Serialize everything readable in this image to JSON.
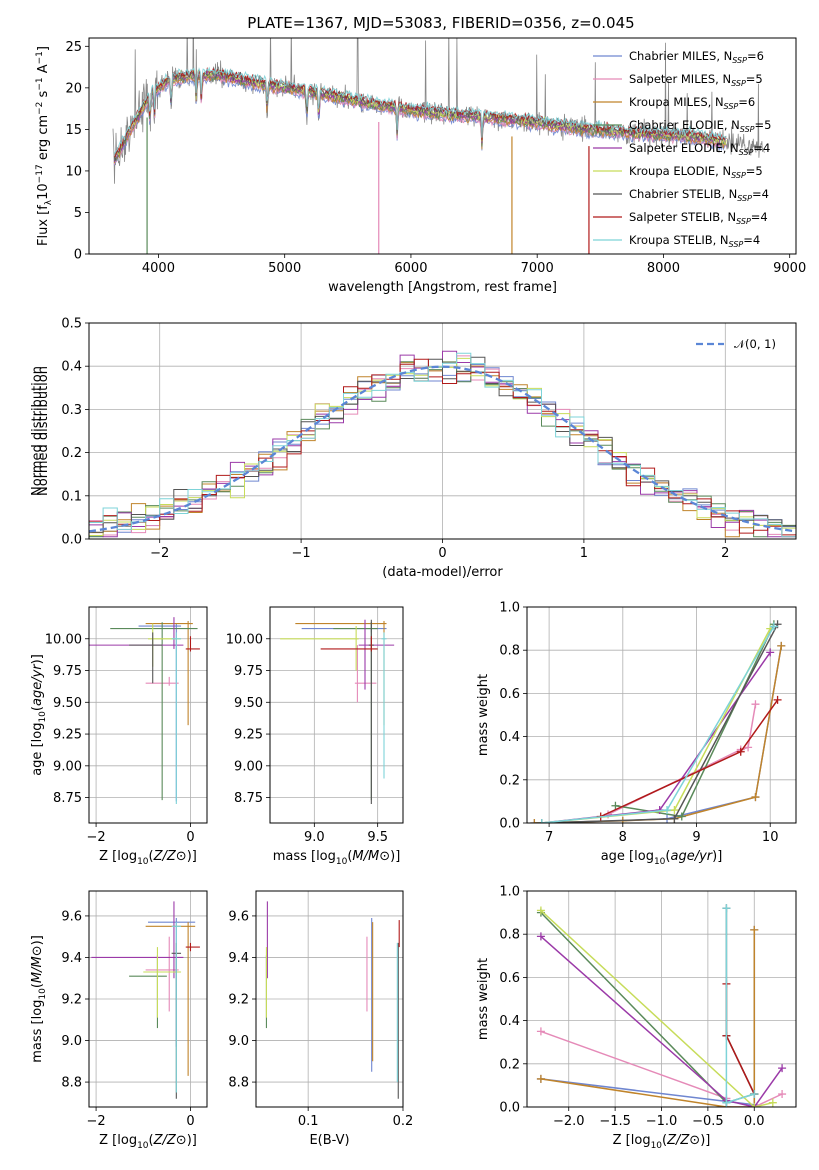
{
  "title": "PLATE=1367, MJD=53083, FIBERID=0356, z=0.045",
  "colors": {
    "series": [
      "#6f86d0",
      "#e58ab8",
      "#c0842b",
      "#5a8a5a",
      "#9b3aa8",
      "#c7dc5a",
      "#555555",
      "#b01a1a",
      "#7dd3d8"
    ],
    "grid": "#b0b0b0",
    "normal_curve": "#5b86d6"
  },
  "series_names": [
    [
      "Chabrier MILES, N",
      "SSP",
      "=6"
    ],
    [
      "Salpeter MILES, N",
      "SSP",
      "=5"
    ],
    [
      "Kroupa MILES, N",
      "SSP",
      "=6"
    ],
    [
      "Chabrier ELODIE, N",
      "SSP",
      "=5"
    ],
    [
      "Salpeter ELODIE, N",
      "SSP",
      "=4"
    ],
    [
      "Kroupa ELODIE, N",
      "SSP",
      "=5"
    ],
    [
      "Chabrier STELIB, N",
      "SSP",
      "=4"
    ],
    [
      "Salpeter STELIB, N",
      "SSP",
      "=4"
    ],
    [
      "Kroupa STELIB, N",
      "SSP",
      "=4"
    ]
  ],
  "chart_data": [
    {
      "id": "spectrum",
      "type": "line",
      "xlabel": "wavelength [Angstrom, rest frame]",
      "ylabel": [
        "Flux [f",
        "λ",
        "10",
        "−17",
        " erg cm",
        "−2",
        " s",
        "−1",
        " A",
        "−1",
        "]"
      ],
      "xlim": [
        3450,
        9050
      ],
      "ylim": [
        0,
        26
      ],
      "xticks": [
        4000,
        5000,
        6000,
        7000,
        8000,
        9000
      ],
      "yticks": [
        0,
        5,
        10,
        15,
        20,
        25
      ],
      "continuum_knots": [
        [
          3640,
          11
        ],
        [
          3800,
          15.5
        ],
        [
          3950,
          19.5
        ],
        [
          4100,
          21
        ],
        [
          4300,
          21.5
        ],
        [
          4500,
          21.5
        ],
        [
          4800,
          20.5
        ],
        [
          5100,
          19.8
        ],
        [
          5400,
          19
        ],
        [
          5700,
          18
        ],
        [
          6000,
          17.3
        ],
        [
          6300,
          16.8
        ],
        [
          6600,
          16.5
        ],
        [
          7000,
          15.8
        ],
        [
          7400,
          15
        ],
        [
          7800,
          14.5
        ],
        [
          8200,
          14.2
        ],
        [
          8500,
          13.5
        ],
        [
          8800,
          12.8
        ]
      ],
      "absorption_lines": [
        3933,
        3968,
        4101,
        4300,
        4340,
        4861,
        5175,
        5270,
        5890,
        6563
      ],
      "model_range": [
        3650,
        8500
      ],
      "dropouts": [
        [
          3910,
          3
        ],
        [
          5745,
          1
        ],
        [
          6800,
          2
        ],
        [
          7410,
          7
        ]
      ]
    },
    {
      "id": "residuals",
      "type": "histogram",
      "xlabel": "(data-model)/error",
      "ylabel": "Normed distribution",
      "xlim": [
        -2.5,
        2.5
      ],
      "ylim": [
        0,
        0.5
      ],
      "xticks": [
        -2,
        -1,
        0,
        1,
        2
      ],
      "xtick_labels": [
        "−2",
        "−1",
        "0",
        "1",
        "2"
      ],
      "yticks": [
        0,
        0.1,
        0.2,
        0.3,
        0.4,
        0.5
      ],
      "bin_width": 0.1,
      "legend_label": "𝒩(0, 1)"
    },
    {
      "id": "age_vs_Z",
      "type": "errorbar",
      "xlabel": "Z [log10(Z/Z⊙)]",
      "ylabel": "age  [log10(age/yr)]",
      "xlim": [
        -2.15,
        0.35
      ],
      "ylim": [
        8.55,
        10.25
      ],
      "xticks": [
        -2,
        0
      ],
      "yticks": [
        8.75,
        9.0,
        9.25,
        9.5,
        9.75,
        10.0
      ],
      "points": [
        {
          "x": -0.3,
          "xerr": [
            0.8,
            0.1
          ],
          "y": 10.1,
          "yerr": [
            1.38,
            0.02
          ]
        },
        {
          "x": -0.45,
          "xerr": [
            0.5,
            0.2
          ],
          "y": 9.65,
          "yerr": [
            0.02,
            0.05
          ]
        },
        {
          "x": -0.05,
          "xerr": [
            0.9,
            0.1
          ],
          "y": 10.12,
          "yerr": [
            0.8,
            0.02
          ]
        },
        {
          "x": -0.6,
          "xerr": [
            1.1,
            0.75
          ],
          "y": 10.08,
          "yerr": [
            1.35,
            0.05
          ]
        },
        {
          "x": -0.35,
          "xerr": [
            1.8,
            0.2
          ],
          "y": 9.95,
          "yerr": [
            0.03,
            0.22
          ]
        },
        {
          "x": -0.8,
          "xerr": [
            0.1,
            0.6
          ],
          "y": 10.0,
          "yerr": [
            0.22,
            0.12
          ]
        },
        {
          "x": -0.8,
          "xerr": [
            0.5,
            0.2
          ],
          "y": 9.95,
          "yerr": [
            0.3,
            0.1
          ]
        },
        {
          "x": 0.0,
          "xerr": [
            0.1,
            0.2
          ],
          "y": 9.92,
          "yerr": [
            0.02,
            0.1
          ]
        },
        {
          "x": -0.3,
          "xerr": [
            0.1,
            0.1
          ],
          "y": 10.0,
          "yerr": [
            1.3,
            0.05
          ]
        }
      ]
    },
    {
      "id": "age_vs_mass",
      "type": "errorbar",
      "xlabel": "mass [log10(M/M⊙)]",
      "ylabel": "",
      "xlim": [
        8.65,
        9.7
      ],
      "ylim": [
        8.55,
        10.25
      ],
      "xticks": [
        9.0,
        9.5
      ],
      "yticks": [
        8.75,
        9.0,
        9.25,
        9.5,
        9.75,
        10.0
      ],
      "points": [
        {
          "x": 9.45,
          "xerr": [
            0.55,
            0.12
          ],
          "y": 10.08,
          "yerr": [
            0.03,
            0.05
          ]
        },
        {
          "x": 9.34,
          "xerr": [
            0.02,
            0.15
          ],
          "y": 9.65,
          "yerr": [
            0.15,
            0.3
          ]
        },
        {
          "x": 9.55,
          "xerr": [
            0.7,
            0.02
          ],
          "y": 10.12,
          "yerr": [
            0.8,
            0.02
          ]
        },
        {
          "x": 9.45,
          "xerr": [
            0.3,
            0.05
          ],
          "y": 10.08,
          "yerr": [
            1.35,
            0.05
          ]
        },
        {
          "x": 9.4,
          "xerr": [
            0.05,
            0.23
          ],
          "y": 9.95,
          "yerr": [
            0.35,
            0.2
          ]
        },
        {
          "x": 9.33,
          "xerr": [
            0.6,
            0.02
          ],
          "y": 10.0,
          "yerr": [
            0.25,
            0.1
          ]
        },
        {
          "x": 9.45,
          "xerr": [
            0.02,
            0.02
          ],
          "y": 9.95,
          "yerr": [
            1.25,
            0.2
          ]
        },
        {
          "x": 9.45,
          "xerr": [
            0.4,
            0.05
          ],
          "y": 9.92,
          "yerr": [
            0.02,
            0.1
          ]
        },
        {
          "x": 9.55,
          "xerr": [
            0.02,
            0.02
          ],
          "y": 10.0,
          "yerr": [
            1.1,
            0.05
          ]
        }
      ]
    },
    {
      "id": "weight_vs_age",
      "type": "line",
      "xlabel": "age  [log10(age/yr)]",
      "ylabel": "mass weight",
      "xlim": [
        6.7,
        10.35
      ],
      "ylim": [
        0,
        1.0
      ],
      "xticks": [
        7,
        8,
        9,
        10
      ],
      "yticks": [
        0.0,
        0.2,
        0.4,
        0.6,
        0.8,
        1.0
      ],
      "series": [
        {
          "x": [
            6.8,
            8.0,
            8.6,
            9.8,
            10.15
          ],
          "y": [
            0.0,
            0.01,
            0.02,
            0.12,
            0.82
          ]
        },
        {
          "x": [
            7.8,
            9.6,
            9.7,
            9.8
          ],
          "y": [
            0.04,
            0.34,
            0.35,
            0.55
          ]
        },
        {
          "x": [
            6.8,
            8.0,
            8.7,
            9.8,
            10.15
          ],
          "y": [
            0.0,
            0.01,
            0.02,
            0.12,
            0.82
          ]
        },
        {
          "x": [
            7.9,
            8.8,
            10.05
          ],
          "y": [
            0.08,
            0.03,
            0.92
          ]
        },
        {
          "x": [
            6.9,
            8.5,
            10.0
          ],
          "y": [
            0.0,
            0.06,
            0.79
          ]
        },
        {
          "x": [
            6.9,
            8.7,
            10.0
          ],
          "y": [
            0.0,
            0.06,
            0.9
          ]
        },
        {
          "x": [
            6.9,
            8.7,
            10.1
          ],
          "y": [
            0.0,
            0.02,
            0.92
          ]
        },
        {
          "x": [
            7.7,
            9.6,
            10.1
          ],
          "y": [
            0.03,
            0.33,
            0.57
          ]
        },
        {
          "x": [
            6.9,
            8.6,
            10.05
          ],
          "y": [
            0.0,
            0.06,
            0.91
          ]
        }
      ]
    },
    {
      "id": "mass_vs_Z",
      "type": "errorbar",
      "xlabel": "Z [log10(Z/Z⊙)]",
      "ylabel": "mass [log10(M/M⊙)]",
      "xlim": [
        -2.15,
        0.35
      ],
      "ylim": [
        8.68,
        9.72
      ],
      "xticks": [
        -2,
        0
      ],
      "yticks": [
        8.8,
        9.0,
        9.2,
        9.4,
        9.6
      ],
      "points": [
        {
          "x": -0.3,
          "xerr": [
            0.6,
            0.4
          ],
          "y": 9.57,
          "yerr": [
            0.6,
            0.02
          ]
        },
        {
          "x": -0.45,
          "xerr": [
            0.5,
            0.2
          ],
          "y": 9.34,
          "yerr": [
            0.2,
            0.16
          ]
        },
        {
          "x": -0.05,
          "xerr": [
            0.9,
            0.15
          ],
          "y": 9.55,
          "yerr": [
            0.72,
            0.02
          ]
        },
        {
          "x": -0.7,
          "xerr": [
            0.6,
            0.2
          ],
          "y": 9.31,
          "yerr": [
            0.25,
            0.1
          ]
        },
        {
          "x": -0.35,
          "xerr": [
            1.75,
            0.2
          ],
          "y": 9.4,
          "yerr": [
            0.1,
            0.27
          ]
        },
        {
          "x": -0.7,
          "xerr": [
            0.3,
            0.5
          ],
          "y": 9.33,
          "yerr": [
            0.22,
            0.12
          ]
        },
        {
          "x": -0.3,
          "xerr": [
            0.1,
            0.1
          ],
          "y": 9.42,
          "yerr": [
            0.7,
            0.05
          ]
        },
        {
          "x": 0.0,
          "xerr": [
            0.1,
            0.2
          ],
          "y": 9.45,
          "yerr": [
            0.02,
            0.02
          ]
        },
        {
          "x": -0.3,
          "xerr": [
            0.1,
            0.1
          ],
          "y": 9.55,
          "yerr": [
            0.8,
            0.02
          ]
        }
      ]
    },
    {
      "id": "mass_vs_EBV",
      "type": "errorbar",
      "xlabel": "E(B-V)",
      "ylabel": "",
      "xlim": [
        0.045,
        0.2
      ],
      "ylim": [
        8.68,
        9.72
      ],
      "xticks": [
        0.1,
        0.2
      ],
      "yticks": [
        8.8,
        9.0,
        9.2,
        9.4,
        9.6
      ],
      "points": [
        {
          "x": 0.167,
          "xerr": [
            0,
            0
          ],
          "y": 9.57,
          "yerr": [
            0.72,
            0.02
          ]
        },
        {
          "x": 0.162,
          "xerr": [
            0,
            0
          ],
          "y": 9.34,
          "yerr": [
            0.2,
            0.16
          ]
        },
        {
          "x": 0.168,
          "xerr": [
            0,
            0
          ],
          "y": 9.55,
          "yerr": [
            0.65,
            0.02
          ]
        },
        {
          "x": 0.056,
          "xerr": [
            0,
            0
          ],
          "y": 9.31,
          "yerr": [
            0.25,
            0.1
          ]
        },
        {
          "x": 0.057,
          "xerr": [
            0,
            0
          ],
          "y": 9.4,
          "yerr": [
            0.1,
            0.27
          ]
        },
        {
          "x": 0.056,
          "xerr": [
            0,
            0
          ],
          "y": 9.33,
          "yerr": [
            0.22,
            0.12
          ]
        },
        {
          "x": 0.195,
          "xerr": [
            0,
            0
          ],
          "y": 9.42,
          "yerr": [
            0.7,
            0.05
          ]
        },
        {
          "x": 0.196,
          "xerr": [
            0,
            0
          ],
          "y": 9.5,
          "yerr": [
            0.05,
            0.08
          ]
        },
        {
          "x": 0.194,
          "xerr": [
            0,
            0
          ],
          "y": 9.45,
          "yerr": [
            0.65,
            0.02
          ]
        }
      ]
    },
    {
      "id": "weight_vs_Z",
      "type": "line",
      "xlabel": "Z [log10(Z/Z⊙)]",
      "ylabel": "mass weight",
      "xlim": [
        -2.45,
        0.45
      ],
      "ylim": [
        0,
        1.0
      ],
      "xticks": [
        -2.0,
        -1.5,
        -1.0,
        -0.5,
        0.0
      ],
      "xtick_labels": [
        "−2.0",
        "−1.5",
        "−1.0",
        "−0.5",
        "0.0"
      ],
      "yticks": [
        0.0,
        0.2,
        0.4,
        0.6,
        0.8,
        1.0
      ],
      "series": [
        {
          "x": [
            -2.3,
            0.0,
            0.0
          ],
          "y": [
            0.13,
            0.01,
            0.82
          ]
        },
        {
          "x": [
            -2.3,
            -0.3,
            -0.3,
            0.0,
            0.3
          ],
          "y": [
            0.35,
            0.04,
            0.0,
            0.0,
            0.06
          ]
        },
        {
          "x": [
            -2.3,
            -0.3,
            0.0,
            0.0
          ],
          "y": [
            0.13,
            0.0,
            0.0,
            0.82
          ]
        },
        {
          "x": [
            -2.3,
            -0.3,
            0.0
          ],
          "y": [
            0.9,
            0.02,
            0.06
          ]
        },
        {
          "x": [
            -2.3,
            -0.3,
            0.0,
            0.3
          ],
          "y": [
            0.79,
            0.03,
            0.0,
            0.18
          ]
        },
        {
          "x": [
            -2.3,
            0.0,
            0.2
          ],
          "y": [
            0.91,
            0.0,
            0.02
          ]
        },
        {
          "x": [
            -0.3,
            -0.3,
            0.0
          ],
          "y": [
            0.92,
            0.33,
            0.06
          ]
        },
        {
          "x": [
            -0.3,
            -0.3,
            0.0
          ],
          "y": [
            0.57,
            0.33,
            0.06
          ]
        },
        {
          "x": [
            -0.3,
            -0.3,
            0.0
          ],
          "y": [
            0.92,
            0.02,
            0.06
          ]
        }
      ]
    }
  ]
}
